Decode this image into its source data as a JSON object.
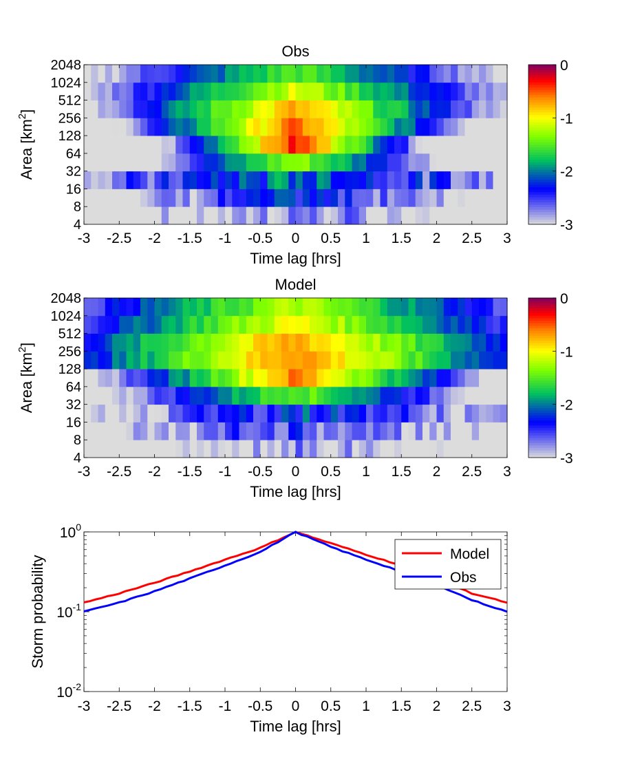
{
  "colors": {
    "model": "#ff0000",
    "obs": "#0000ff",
    "colormap_stops": [
      "#dcdcdc",
      "#0000ff",
      "#00c060",
      "#80ff00",
      "#ffff00",
      "#ff8000",
      "#ff0000",
      "#800060"
    ]
  },
  "chart_data": [
    {
      "type": "heatmap",
      "title": "Obs",
      "xlabel": "Time lag [hrs]",
      "ylabel_main": "Area [km",
      "ylabel_sup": "2",
      "ylabel_end": "]",
      "xlim": [
        -3,
        3
      ],
      "x_ticks": [
        "-3",
        "-2.5",
        "-2",
        "-1.5",
        "-1",
        "-0.5",
        "0",
        "0.5",
        "1",
        "1.5",
        "2",
        "2.5",
        "3"
      ],
      "y_ticks": [
        "4",
        "8",
        "16",
        "32",
        "64",
        "128",
        "256",
        "512",
        "1024",
        "2048"
      ],
      "colorbar_range": [
        -3,
        0
      ],
      "colorbar_ticks": [
        "0",
        "-1",
        "-2",
        "-3"
      ],
      "value_scale": "log10",
      "approx_row_peak_values": [
        -2.7,
        -2.3,
        -2.0,
        -1.3,
        -0.35,
        -0.55,
        -0.75,
        -1.1,
        -1.5,
        -1.75
      ],
      "approx_row_width_hrs": [
        3.0,
        2.5,
        2.5,
        0.9,
        0.55,
        0.8,
        1.0,
        1.2,
        1.4,
        1.6
      ]
    },
    {
      "type": "heatmap",
      "title": "Model",
      "xlabel": "Time lag [hrs]",
      "ylabel_main": "Area [km",
      "ylabel_sup": "2",
      "ylabel_end": "]",
      "xlim": [
        -3,
        3
      ],
      "x_ticks": [
        "-3",
        "-2.5",
        "-2",
        "-1.5",
        "-1",
        "-0.5",
        "0",
        "0.5",
        "1",
        "1.5",
        "2",
        "2.5",
        "3"
      ],
      "y_ticks": [
        "4",
        "8",
        "16",
        "32",
        "64",
        "128",
        "256",
        "512",
        "1024",
        "2048"
      ],
      "colorbar_range": [
        -3,
        0
      ],
      "colorbar_ticks": [
        "0",
        "-1",
        "-2",
        "-3"
      ],
      "value_scale": "log10",
      "approx_row_peak_values": [
        -2.8,
        -2.5,
        -2.2,
        -1.4,
        -0.6,
        -0.6,
        -0.7,
        -1.0,
        -1.2,
        -1.7
      ],
      "approx_row_width_hrs": [
        3.0,
        3.0,
        2.5,
        1.2,
        0.9,
        1.3,
        1.4,
        1.5,
        1.6,
        1.8
      ]
    },
    {
      "type": "line",
      "xlabel": "Time lag [hrs]",
      "ylabel": "Storm probability",
      "xlim": [
        -3,
        3
      ],
      "ylim": [
        0.01,
        1
      ],
      "y_scale": "log",
      "x_ticks": [
        "-3",
        "-2.5",
        "-2",
        "-1.5",
        "-1",
        "-0.5",
        "0",
        "0.5",
        "1",
        "1.5",
        "2",
        "2.5",
        "3"
      ],
      "y_ticks": [
        {
          "base": "10",
          "exp": "0",
          "value": 1
        },
        {
          "base": "10",
          "exp": "-1",
          "value": 0.1
        },
        {
          "base": "10",
          "exp": "-2",
          "value": 0.01
        }
      ],
      "legend_position": "top-right",
      "x": [
        -3,
        -2.5,
        -2,
        -1.5,
        -1,
        -0.5,
        0,
        0.5,
        1,
        1.5,
        2,
        2.5,
        3
      ],
      "series": [
        {
          "name": "Model",
          "values": [
            0.13,
            0.17,
            0.23,
            0.32,
            0.45,
            0.63,
            1.0,
            0.72,
            0.52,
            0.38,
            0.26,
            0.17,
            0.13
          ]
        },
        {
          "name": "Obs",
          "values": [
            0.1,
            0.13,
            0.18,
            0.26,
            0.38,
            0.56,
            1.0,
            0.65,
            0.45,
            0.32,
            0.22,
            0.14,
            0.1
          ]
        }
      ]
    }
  ]
}
